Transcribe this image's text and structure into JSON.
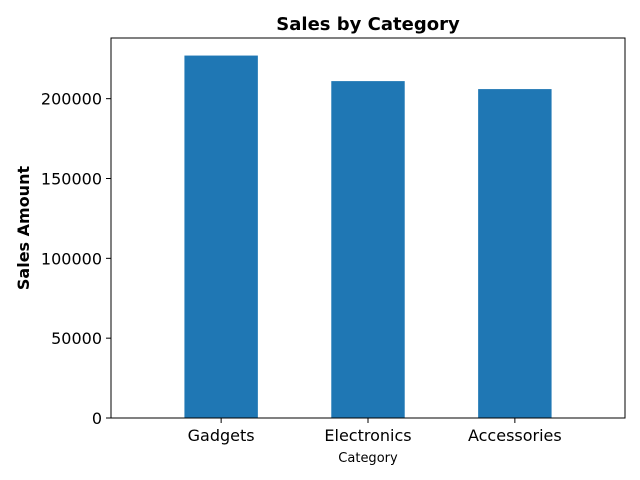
{
  "chart_data": {
    "type": "bar",
    "title": "Sales by Category",
    "xlabel": "Category",
    "ylabel": "Sales Amount",
    "categories": [
      "Gadgets",
      "Electronics",
      "Accessories"
    ],
    "values": [
      227000,
      211000,
      206000
    ],
    "ylim": [
      0,
      238000
    ],
    "yticks": [
      0,
      50000,
      100000,
      150000,
      200000
    ],
    "ytick_labels": [
      "0",
      "50000",
      "100000",
      "150000",
      "200000"
    ],
    "bar_color": "#1f77b4",
    "grid": false,
    "legend": "none"
  }
}
